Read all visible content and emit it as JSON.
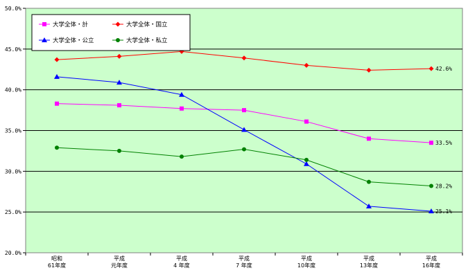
{
  "chart_data": {
    "type": "line",
    "categories": [
      [
        "昭和",
        "61年度"
      ],
      [
        "平成",
        "元年度"
      ],
      [
        "平成",
        "4 年度"
      ],
      [
        "平成",
        "7 年度"
      ],
      [
        "平成",
        "10年度"
      ],
      [
        "平成",
        "13年度"
      ],
      [
        "平成",
        "16年度"
      ]
    ],
    "ylim": [
      20.0,
      50.0
    ],
    "yticks": [
      "20.0%",
      "25.0%",
      "30.0%",
      "35.0%",
      "40.0%",
      "45.0%",
      "50.0%"
    ],
    "grid": true,
    "legend_position": "top-left",
    "plot_background": "#ccffcc",
    "series": [
      {
        "name": "大学全体・計",
        "color": "#ff00ff",
        "marker": "square",
        "values": [
          38.3,
          38.1,
          37.7,
          37.5,
          36.1,
          34.0,
          33.5
        ],
        "end_label": "33.5%"
      },
      {
        "name": "大学全体・国立",
        "color": "#ff0000",
        "marker": "diamond",
        "values": [
          43.7,
          44.1,
          44.7,
          43.9,
          43.0,
          42.4,
          42.6
        ],
        "end_label": "42.6%"
      },
      {
        "name": "大学全体・公立",
        "color": "#0000ff",
        "marker": "triangle",
        "values": [
          41.6,
          40.9,
          39.4,
          35.1,
          30.9,
          25.7,
          25.1
        ],
        "end_label": "25.1%"
      },
      {
        "name": "大学全体・私立",
        "color": "#008000",
        "marker": "circle",
        "values": [
          32.9,
          32.5,
          31.8,
          32.7,
          31.4,
          28.7,
          28.2
        ],
        "end_label": "28.2%"
      }
    ]
  }
}
